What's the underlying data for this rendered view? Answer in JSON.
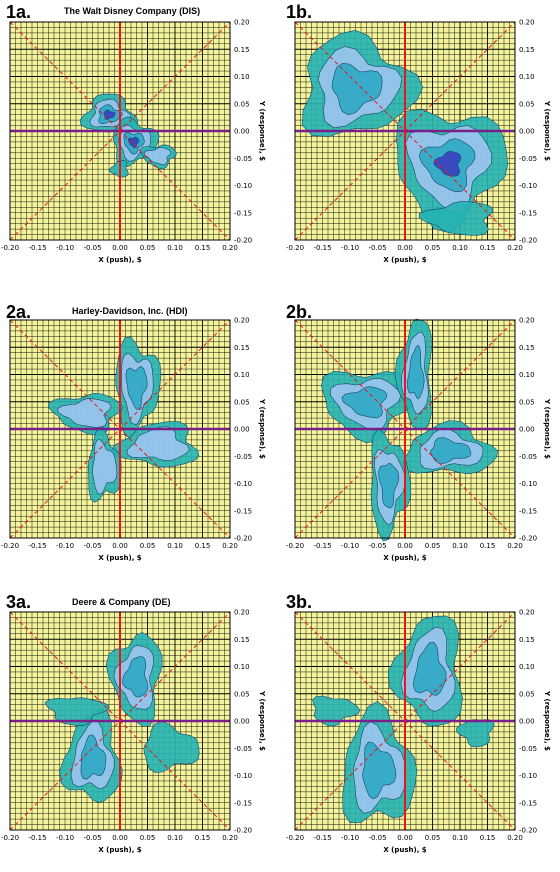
{
  "chart_data": [
    {
      "id": "1a",
      "panel_label": "1a.",
      "title": "The Walt Disney Company (DIS)",
      "type": "heatmap",
      "xlabel": "X (push), $",
      "ylabel": "Y (response), $",
      "xlim": [
        -0.2,
        0.2
      ],
      "ylim": [
        -0.2,
        0.2
      ],
      "x_ticks": [
        "-0.20",
        "-0.15",
        "-0.10",
        "-0.05",
        "0.00",
        "0.05",
        "0.10",
        "0.15",
        "0.20"
      ],
      "y_ticks": [
        "0.20",
        "0.15",
        "0.10",
        "0.05",
        "0.00",
        "-0.05",
        "-0.10",
        "-0.15",
        "-0.20"
      ],
      "grid": true,
      "density_levels": [
        "outer",
        "middle",
        "inner",
        "core"
      ],
      "lobes": [
        {
          "cx": -0.02,
          "cy": 0.03,
          "rx": 0.045,
          "ry": 0.035,
          "levels": 4
        },
        {
          "cx": 0.025,
          "cy": -0.02,
          "rx": 0.04,
          "ry": 0.04,
          "levels": 4
        },
        {
          "cx": 0.07,
          "cy": -0.045,
          "rx": 0.03,
          "ry": 0.02,
          "levels": 2
        },
        {
          "cx": 0.0,
          "cy": -0.07,
          "rx": 0.015,
          "ry": 0.015,
          "levels": 1
        }
      ]
    },
    {
      "id": "1b",
      "panel_label": "1b.",
      "title": "",
      "type": "heatmap",
      "xlabel": "X (push), $",
      "ylabel": "Y (response), $",
      "xlim": [
        -0.2,
        0.2
      ],
      "ylim": [
        -0.2,
        0.2
      ],
      "x_ticks": [
        "-0.20",
        "-0.15",
        "-0.10",
        "-0.05",
        "0.00",
        "0.05",
        "0.10",
        "0.15",
        "0.20"
      ],
      "y_ticks": [
        "0.20",
        "0.15",
        "0.10",
        "0.05",
        "0.00",
        "-0.05",
        "-0.10",
        "-0.15",
        "-0.20"
      ],
      "grid": true,
      "density_levels": [
        "outer",
        "middle",
        "inner",
        "core"
      ],
      "lobes": [
        {
          "cx": -0.09,
          "cy": 0.08,
          "rx": 0.1,
          "ry": 0.09,
          "levels": 3
        },
        {
          "cx": 0.08,
          "cy": -0.06,
          "rx": 0.1,
          "ry": 0.1,
          "levels": 4
        },
        {
          "cx": 0.1,
          "cy": -0.16,
          "rx": 0.06,
          "ry": 0.03,
          "levels": 1
        }
      ]
    },
    {
      "id": "2a",
      "panel_label": "2a.",
      "title": "Harley-Davidson, Inc. (HDI)",
      "type": "heatmap",
      "xlabel": "X (push), $",
      "ylabel": "Y (response), $",
      "xlim": [
        -0.2,
        0.2
      ],
      "ylim": [
        -0.2,
        0.2
      ],
      "x_ticks": [
        "-0.20",
        "-0.15",
        "-0.10",
        "-0.05",
        "0.00",
        "0.05",
        "0.10",
        "0.15",
        "0.20"
      ],
      "y_ticks": [
        "0.20",
        "0.15",
        "0.10",
        "0.05",
        "0.00",
        "-0.05",
        "-0.10",
        "-0.15",
        "-0.20"
      ],
      "grid": true,
      "density_levels": [
        "outer",
        "middle",
        "inner",
        "core"
      ],
      "lobes": [
        {
          "cx": 0.03,
          "cy": 0.08,
          "rx": 0.04,
          "ry": 0.08,
          "levels": 3
        },
        {
          "cx": -0.06,
          "cy": 0.03,
          "rx": 0.06,
          "ry": 0.035,
          "levels": 2
        },
        {
          "cx": 0.07,
          "cy": -0.03,
          "rx": 0.07,
          "ry": 0.04,
          "levels": 2
        },
        {
          "cx": -0.03,
          "cy": -0.07,
          "rx": 0.03,
          "ry": 0.06,
          "levels": 2
        }
      ]
    },
    {
      "id": "2b",
      "panel_label": "2b.",
      "title": "",
      "type": "heatmap",
      "xlabel": "X (push), $",
      "ylabel": "Y (response), $",
      "xlim": [
        -0.2,
        0.2
      ],
      "ylim": [
        -0.2,
        0.2
      ],
      "x_ticks": [
        "-0.20",
        "-0.15",
        "-0.10",
        "-0.05",
        "0.00",
        "0.05",
        "0.10",
        "0.15",
        "0.20"
      ],
      "y_ticks": [
        "0.20",
        "0.15",
        "0.10",
        "0.05",
        "0.00",
        "-0.05",
        "-0.10",
        "-0.15",
        "-0.20"
      ],
      "grid": true,
      "density_levels": [
        "outer",
        "middle",
        "inner",
        "core"
      ],
      "lobes": [
        {
          "cx": -0.07,
          "cy": 0.05,
          "rx": 0.08,
          "ry": 0.06,
          "levels": 3
        },
        {
          "cx": 0.02,
          "cy": 0.1,
          "rx": 0.03,
          "ry": 0.1,
          "levels": 3
        },
        {
          "cx": 0.08,
          "cy": -0.04,
          "rx": 0.08,
          "ry": 0.045,
          "levels": 3
        },
        {
          "cx": -0.03,
          "cy": -0.1,
          "rx": 0.035,
          "ry": 0.09,
          "levels": 3
        }
      ]
    },
    {
      "id": "3a",
      "panel_label": "3a.",
      "title": "Deere & Company (DE)",
      "type": "heatmap",
      "xlabel": "X (push), $",
      "ylabel": "Y (response), $",
      "xlim": [
        -0.2,
        0.2
      ],
      "ylim": [
        -0.2,
        0.2
      ],
      "x_ticks": [
        "-0.20",
        "-0.15",
        "-0.10",
        "-0.05",
        "0.00",
        "0.05",
        "0.10",
        "0.15",
        "0.20"
      ],
      "y_ticks": [
        "0.20",
        "0.15",
        "0.10",
        "0.05",
        "0.00",
        "-0.05",
        "-0.10",
        "-0.15",
        "-0.20"
      ],
      "grid": true,
      "density_levels": [
        "outer",
        "middle",
        "inner",
        "core"
      ],
      "lobes": [
        {
          "cx": 0.03,
          "cy": 0.08,
          "rx": 0.045,
          "ry": 0.08,
          "levels": 3
        },
        {
          "cx": -0.05,
          "cy": -0.07,
          "rx": 0.05,
          "ry": 0.08,
          "levels": 3
        },
        {
          "cx": 0.09,
          "cy": -0.05,
          "rx": 0.05,
          "ry": 0.04,
          "levels": 1
        },
        {
          "cx": -0.08,
          "cy": 0.02,
          "rx": 0.05,
          "ry": 0.025,
          "levels": 1
        }
      ]
    },
    {
      "id": "3b",
      "panel_label": "3b.",
      "title": "",
      "type": "heatmap",
      "xlabel": "X (push), $",
      "ylabel": "Y (response), $",
      "xlim": [
        -0.2,
        0.2
      ],
      "ylim": [
        -0.2,
        0.2
      ],
      "x_ticks": [
        "-0.20",
        "-0.15",
        "-0.10",
        "-0.05",
        "0.00",
        "0.05",
        "0.10",
        "0.15",
        "0.20"
      ],
      "y_ticks": [
        "0.20",
        "0.15",
        "0.10",
        "0.05",
        "0.00",
        "-0.05",
        "-0.10",
        "-0.15",
        "-0.20"
      ],
      "grid": true,
      "density_levels": [
        "outer",
        "middle",
        "inner",
        "core"
      ],
      "lobes": [
        {
          "cx": 0.045,
          "cy": 0.09,
          "rx": 0.06,
          "ry": 0.1,
          "levels": 3
        },
        {
          "cx": -0.05,
          "cy": -0.09,
          "rx": 0.065,
          "ry": 0.1,
          "levels": 3
        },
        {
          "cx": -0.13,
          "cy": 0.02,
          "rx": 0.04,
          "ry": 0.025,
          "levels": 1
        },
        {
          "cx": 0.13,
          "cy": -0.02,
          "rx": 0.03,
          "ry": 0.025,
          "levels": 1
        }
      ]
    }
  ],
  "colors": {
    "background": "#f4f49c",
    "grid": "#000000",
    "outer": "#26b2b2",
    "middle": "#9cc4ee",
    "inner": "#2ea9c4",
    "core": "#3a3fbf",
    "contour": "#154a6a",
    "zero_horizontal": "#7a1f8a",
    "zero_vertical": "#e8161a",
    "diagonal": "#e8161a"
  }
}
